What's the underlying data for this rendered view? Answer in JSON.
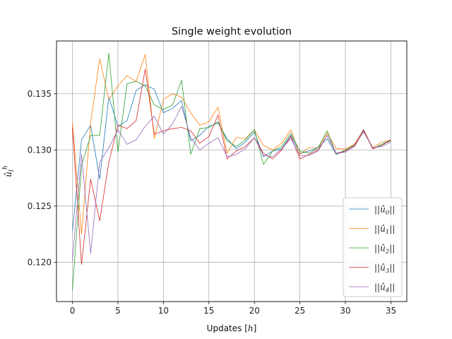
{
  "chart_data": {
    "type": "line",
    "title": "Single weight evolution",
    "xlabel": "Updates [h]",
    "ylabel": "û_l^h",
    "xlim": [
      -1.75,
      36.75
    ],
    "ylim": [
      0.1165,
      0.1397
    ],
    "xticks": [
      0,
      5,
      10,
      15,
      20,
      25,
      30,
      35
    ],
    "yticks": [
      0.12,
      0.125,
      0.13,
      0.135
    ],
    "ytick_labels": [
      "0.120",
      "0.125",
      "0.130",
      "0.135"
    ],
    "grid": true,
    "legend": "lower-right",
    "x": [
      0,
      1,
      2,
      3,
      4,
      5,
      6,
      7,
      8,
      9,
      10,
      11,
      12,
      13,
      14,
      15,
      16,
      17,
      18,
      19,
      20,
      21,
      22,
      23,
      24,
      25,
      26,
      27,
      28,
      29,
      30,
      31,
      32,
      33,
      34,
      35
    ],
    "series": [
      {
        "name": "||û0||",
        "color": "#1f77b4",
        "values": [
          0.1228,
          0.1309,
          0.1322,
          0.1274,
          0.1347,
          0.1321,
          0.1326,
          0.1353,
          0.1358,
          0.1354,
          0.1333,
          0.1337,
          0.1344,
          0.1308,
          0.1313,
          0.1321,
          0.1324,
          0.131,
          0.1301,
          0.1307,
          0.1316,
          0.1294,
          0.1299,
          0.1301,
          0.1313,
          0.1297,
          0.1299,
          0.1302,
          0.131,
          0.1296,
          0.1299,
          0.1305,
          0.1317,
          0.1301,
          0.1305,
          0.1309
        ]
      },
      {
        "name": "||û1||",
        "color": "#ff7f0e",
        "values": [
          0.1325,
          0.1225,
          0.1324,
          0.1381,
          0.1345,
          0.1357,
          0.1366,
          0.1361,
          0.1385,
          0.131,
          0.1345,
          0.135,
          0.1347,
          0.1333,
          0.1322,
          0.1325,
          0.1338,
          0.1297,
          0.1311,
          0.131,
          0.1318,
          0.1304,
          0.13,
          0.1306,
          0.1318,
          0.1296,
          0.1302,
          0.1302,
          0.1315,
          0.1301,
          0.1301,
          0.1305,
          0.1318,
          0.1302,
          0.1307,
          0.1309
        ]
      },
      {
        "name": "||û2||",
        "color": "#2ca02c",
        "values": [
          0.1175,
          0.1286,
          0.1313,
          0.1313,
          0.1386,
          0.1298,
          0.1359,
          0.1361,
          0.1357,
          0.134,
          0.1336,
          0.134,
          0.1362,
          0.1296,
          0.1319,
          0.132,
          0.1325,
          0.1308,
          0.1303,
          0.1309,
          0.1318,
          0.1287,
          0.1299,
          0.1303,
          0.1315,
          0.1299,
          0.1297,
          0.1302,
          0.1317,
          0.1296,
          0.13,
          0.1304,
          0.1318,
          0.1301,
          0.1305,
          0.1308
        ]
      },
      {
        "name": "||û3||",
        "color": "#d62728",
        "values": [
          0.132,
          0.1198,
          0.1274,
          0.1237,
          0.1289,
          0.1322,
          0.1319,
          0.1326,
          0.1372,
          0.1314,
          0.1317,
          0.1319,
          0.132,
          0.1317,
          0.1306,
          0.1312,
          0.1331,
          0.1292,
          0.1299,
          0.1303,
          0.1311,
          0.1297,
          0.1292,
          0.13,
          0.1312,
          0.1292,
          0.1296,
          0.13,
          0.1313,
          0.1297,
          0.1299,
          0.1304,
          0.1318,
          0.1301,
          0.1304,
          0.1309
        ]
      },
      {
        "name": "||û4||",
        "color": "#9467bd",
        "values": [
          0.1201,
          0.1296,
          0.1208,
          0.1289,
          0.1302,
          0.1318,
          0.1305,
          0.1309,
          0.1321,
          0.133,
          0.1314,
          0.1323,
          0.1339,
          0.1311,
          0.13,
          0.1306,
          0.1311,
          0.1294,
          0.1296,
          0.1301,
          0.1311,
          0.1295,
          0.1294,
          0.1301,
          0.131,
          0.1295,
          0.1295,
          0.1299,
          0.1313,
          0.1297,
          0.1298,
          0.1303,
          0.1316,
          0.1302,
          0.1303,
          0.1307
        ]
      }
    ]
  }
}
